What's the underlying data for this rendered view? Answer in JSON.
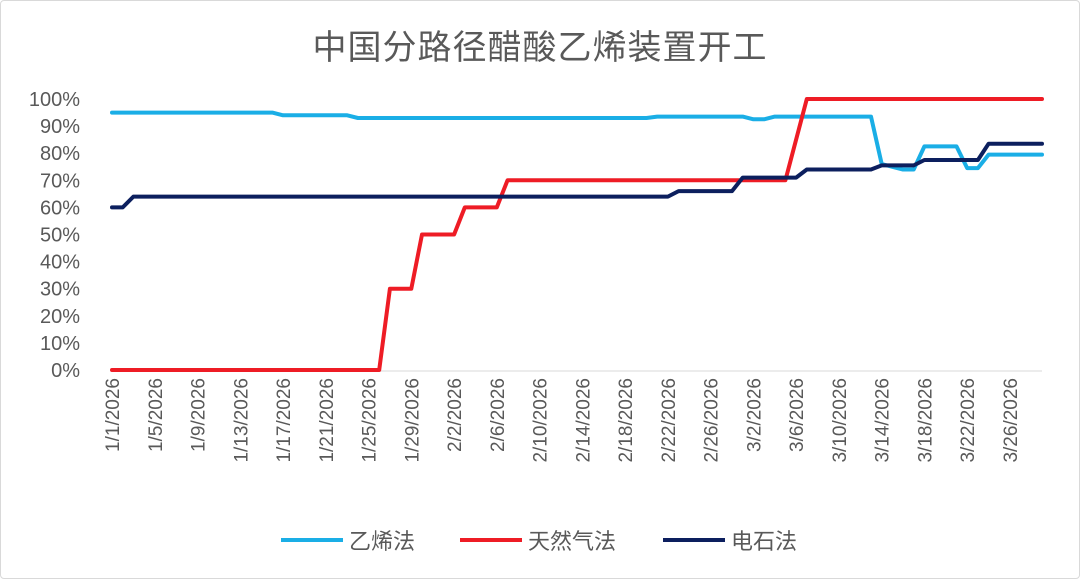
{
  "chart_data": {
    "type": "line",
    "title": "中国分路径醋酸乙烯装置开工",
    "xlabel": "",
    "ylabel": "",
    "ylim": [
      0,
      1
    ],
    "y_tick_labels": [
      "0%",
      "10%",
      "20%",
      "30%",
      "40%",
      "50%",
      "60%",
      "70%",
      "80%",
      "90%",
      "100%"
    ],
    "x_tick_labels": [
      "1/1/2026",
      "1/5/2026",
      "1/9/2026",
      "1/13/2026",
      "1/17/2026",
      "1/21/2026",
      "1/25/2026",
      "1/29/2026",
      "2/2/2026",
      "2/6/2026",
      "2/10/2026",
      "2/14/2026",
      "2/18/2026",
      "2/22/2026",
      "2/26/2026",
      "3/2/2026",
      "3/6/2026",
      "3/10/2026",
      "3/14/2026",
      "3/18/2026",
      "3/22/2026",
      "3/26/2026"
    ],
    "x_range": [
      "1/1/2026",
      "3/29/2026"
    ],
    "grid": false,
    "legend_position": "bottom",
    "series": [
      {
        "name": "乙烯法",
        "color": "#1aaee6",
        "points": [
          [
            "1/1/2026",
            0.95
          ],
          [
            "1/16/2026",
            0.95
          ],
          [
            "1/17/2026",
            0.94
          ],
          [
            "1/23/2026",
            0.94
          ],
          [
            "1/24/2026",
            0.93
          ],
          [
            "2/20/2026",
            0.93
          ],
          [
            "2/21/2026",
            0.935
          ],
          [
            "3/1/2026",
            0.935
          ],
          [
            "3/2/2026",
            0.925
          ],
          [
            "3/3/2026",
            0.925
          ],
          [
            "3/4/2026",
            0.935
          ],
          [
            "3/13/2026",
            0.935
          ],
          [
            "3/14/2026",
            0.76
          ],
          [
            "3/15/2026",
            0.75
          ],
          [
            "3/16/2026",
            0.74
          ],
          [
            "3/17/2026",
            0.74
          ],
          [
            "3/18/2026",
            0.825
          ],
          [
            "3/21/2026",
            0.825
          ],
          [
            "3/22/2026",
            0.745
          ],
          [
            "3/23/2026",
            0.745
          ],
          [
            "3/24/2026",
            0.795
          ],
          [
            "3/29/2026",
            0.795
          ]
        ]
      },
      {
        "name": "天然气法",
        "color": "#ee1c25",
        "points": [
          [
            "1/1/2026",
            0.0
          ],
          [
            "1/26/2026",
            0.0
          ],
          [
            "1/27/2026",
            0.3
          ],
          [
            "1/29/2026",
            0.3
          ],
          [
            "1/30/2026",
            0.5
          ],
          [
            "2/2/2026",
            0.5
          ],
          [
            "2/3/2026",
            0.6
          ],
          [
            "2/6/2026",
            0.6
          ],
          [
            "2/7/2026",
            0.7
          ],
          [
            "3/5/2026",
            0.7
          ],
          [
            "3/7/2026",
            1.0
          ],
          [
            "3/29/2026",
            1.0
          ]
        ]
      },
      {
        "name": "电石法",
        "color": "#0c1f5e",
        "points": [
          [
            "1/1/2026",
            0.6
          ],
          [
            "1/2/2026",
            0.6
          ],
          [
            "1/3/2026",
            0.64
          ],
          [
            "2/22/2026",
            0.64
          ],
          [
            "2/23/2026",
            0.66
          ],
          [
            "2/28/2026",
            0.66
          ],
          [
            "3/1/2026",
            0.71
          ],
          [
            "3/6/2026",
            0.71
          ],
          [
            "3/7/2026",
            0.74
          ],
          [
            "3/13/2026",
            0.74
          ],
          [
            "3/14/2026",
            0.755
          ],
          [
            "3/17/2026",
            0.755
          ],
          [
            "3/18/2026",
            0.775
          ],
          [
            "3/23/2026",
            0.775
          ],
          [
            "3/24/2026",
            0.835
          ],
          [
            "3/29/2026",
            0.835
          ]
        ]
      }
    ]
  }
}
